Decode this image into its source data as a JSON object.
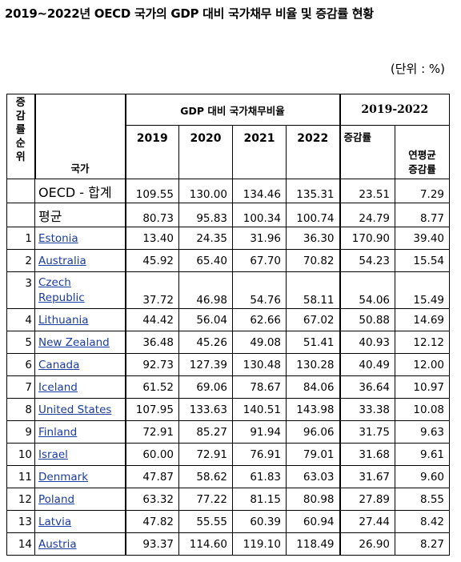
{
  "title": "2019~2022년 OECD 국가의 GDP 대비 국가채무 비율 및 증감률 현황",
  "unit": "(단위 : %)",
  "header": {
    "rank_label": [
      "증",
      "감",
      "률",
      "순",
      "위"
    ],
    "country_label": "국가",
    "gdp_group": "GDP 대비 국가채무비율",
    "period_group": "2019-2022",
    "years": [
      "2019",
      "2020",
      "2021",
      "2022"
    ],
    "change_rate": "증감률",
    "annual_avg_line1": "연평균",
    "annual_avg_line2": "증감률"
  },
  "summary": [
    {
      "label": "OECD - 합계",
      "v2019": "109.55",
      "v2020": "130.00",
      "v2021": "134.46",
      "v2022": "135.31",
      "change": "23.51",
      "avg": "7.29"
    },
    {
      "label": "평균",
      "v2019": "80.73",
      "v2020": "95.83",
      "v2021": "100.34",
      "v2022": "100.74",
      "change": "24.79",
      "avg": "8.77"
    }
  ],
  "rows": [
    {
      "rank": "1",
      "country": "Estonia",
      "v2019": "13.40",
      "v2020": "24.35",
      "v2021": "31.96",
      "v2022": "36.30",
      "change": "170.90",
      "avg": "39.40"
    },
    {
      "rank": "2",
      "country": "Australia",
      "v2019": "45.92",
      "v2020": "65.40",
      "v2021": "67.70",
      "v2022": "70.82",
      "change": "54.23",
      "avg": "15.54"
    },
    {
      "rank": "3",
      "country_line1": "Czech",
      "country_line2": "Republic",
      "v2019": "37.72",
      "v2020": "46.98",
      "v2021": "54.76",
      "v2022": "58.11",
      "change": "54.06",
      "avg": "15.49"
    },
    {
      "rank": "4",
      "country": "Lithuania",
      "v2019": "44.42",
      "v2020": "56.04",
      "v2021": "62.66",
      "v2022": "67.02",
      "change": "50.88",
      "avg": "14.69"
    },
    {
      "rank": "5",
      "country": "New Zealand",
      "v2019": "36.48",
      "v2020": "45.26",
      "v2021": "49.08",
      "v2022": "51.41",
      "change": "40.93",
      "avg": "12.12"
    },
    {
      "rank": "6",
      "country": "Canada",
      "v2019": "92.73",
      "v2020": "127.39",
      "v2021": "130.48",
      "v2022": "130.28",
      "change": "40.49",
      "avg": "12.00"
    },
    {
      "rank": "7",
      "country": "Iceland",
      "v2019": "61.52",
      "v2020": "69.06",
      "v2021": "78.67",
      "v2022": "84.06",
      "change": "36.64",
      "avg": "10.97"
    },
    {
      "rank": "8",
      "country": "United States",
      "v2019": "107.95",
      "v2020": "133.63",
      "v2021": "140.51",
      "v2022": "143.98",
      "change": "33.38",
      "avg": "10.08"
    },
    {
      "rank": "9",
      "country": "Finland",
      "v2019": "72.91",
      "v2020": "85.27",
      "v2021": "91.94",
      "v2022": "96.06",
      "change": "31.75",
      "avg": "9.63"
    },
    {
      "rank": "10",
      "country": "Israel",
      "v2019": "60.00",
      "v2020": "72.91",
      "v2021": "76.91",
      "v2022": "79.01",
      "change": "31.68",
      "avg": "9.61"
    },
    {
      "rank": "11",
      "country": "Denmark",
      "v2019": "47.87",
      "v2020": "58.62",
      "v2021": "61.83",
      "v2022": "63.03",
      "change": "31.67",
      "avg": "9.60"
    },
    {
      "rank": "12",
      "country": "Poland",
      "v2019": "63.32",
      "v2020": "77.22",
      "v2021": "81.15",
      "v2022": "80.98",
      "change": "27.89",
      "avg": "8.55"
    },
    {
      "rank": "13",
      "country": "Latvia",
      "v2019": "47.82",
      "v2020": "55.55",
      "v2021": "60.39",
      "v2022": "60.94",
      "change": "27.44",
      "avg": "8.42"
    },
    {
      "rank": "14",
      "country": "Austria",
      "v2019": "93.37",
      "v2020": "114.60",
      "v2021": "119.10",
      "v2022": "118.49",
      "change": "26.90",
      "avg": "8.27"
    }
  ]
}
